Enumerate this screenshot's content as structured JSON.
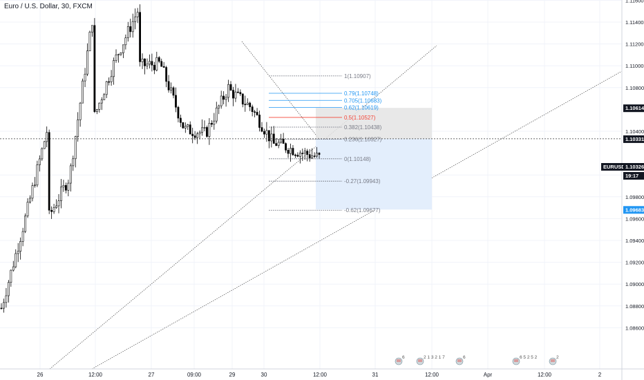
{
  "header": {
    "title": "Euro / U.S. Dollar, 30, FXCM"
  },
  "colors": {
    "candle": "#000000",
    "grid": "#f0f3fa",
    "trendline": "#4a4a4a",
    "fib_gray": "#787b86",
    "fib_blue": "#2196f3",
    "fib_red": "#f44336",
    "stop_zone": "#e4e4e4",
    "target_zone": "#e3eefc",
    "price_label_bg": "#131722",
    "target_label_bg": "#2196f3"
  },
  "price_axis": {
    "ticks": [
      "1.11800",
      "1.11600",
      "1.11400",
      "1.11200",
      "1.11000",
      "1.10800",
      "1.10400",
      "1.10000",
      "1.09800",
      "1.09600",
      "1.09400",
      "1.09200",
      "1.09000",
      "1.08800",
      "1.08600"
    ],
    "tick_values": [
      1.118,
      1.116,
      1.114,
      1.112,
      1.11,
      1.108,
      1.104,
      1.1,
      1.098,
      1.096,
      1.094,
      1.092,
      1.09,
      1.088,
      1.086
    ],
    "partial_tick": "1.10",
    "labels": {
      "upper_zone": "1.10614",
      "crosshair": "1.10331",
      "symbol": "EURUSD",
      "current_price": "1.10326",
      "countdown": "19:17",
      "target": "1.09683"
    }
  },
  "time_axis": {
    "ticks": [
      "26",
      "12:00",
      "27",
      "09:00",
      "29",
      "30",
      "12:00",
      "31",
      "12:00",
      "Apr",
      "12:00",
      "2"
    ]
  },
  "events": {
    "items": [
      {
        "icon": "event-flag-icon",
        "count": "6"
      },
      {
        "icon": "event-flag-icon",
        "count": "2 1 3 2 1 7"
      },
      {
        "icon": "event-flag-icon",
        "count": "6"
      },
      {
        "icon": "event-flag-icon",
        "count": "6 5 2 5 2"
      },
      {
        "icon": "event-flag-icon",
        "count": "2"
      }
    ]
  },
  "chart_data": {
    "type": "candlestick",
    "title": "Euro / U.S. Dollar, 30, FXCM",
    "ylim": [
      1.0845,
      1.1188
    ],
    "crosshair_price": 1.10331,
    "current_price": 1.10326,
    "fib_levels": [
      {
        "ratio": "1",
        "price": 1.10907,
        "label": "1(1.10907)",
        "tone": "gray"
      },
      {
        "ratio": "0.79",
        "price": 1.10748,
        "label": "0.79(1.10748)",
        "tone": "blue"
      },
      {
        "ratio": "0.705",
        "price": 1.10683,
        "label": "0.705(1.10683)",
        "tone": "blue"
      },
      {
        "ratio": "0.62",
        "price": 1.10619,
        "label": "0.62(1.10619)",
        "tone": "blue"
      },
      {
        "ratio": "0.5",
        "price": 1.10527,
        "label": "0.5(1.10527)",
        "tone": "red"
      },
      {
        "ratio": "0.382",
        "price": 1.10438,
        "label": "0.382(1.10438)",
        "tone": "gray"
      },
      {
        "ratio": "0.236",
        "price": 1.10327,
        "label": "0.236(1.10327)",
        "tone": "gray"
      },
      {
        "ratio": "0",
        "price": 1.10148,
        "label": "0(1.10148)",
        "tone": "gray"
      },
      {
        "ratio": "-0.27",
        "price": 1.09943,
        "label": "-0.27(1.09943)",
        "tone": "gray"
      },
      {
        "ratio": "-0.62",
        "price": 1.09677,
        "label": "-0.62(1.09677)",
        "tone": "gray"
      }
    ],
    "zones": {
      "stop": {
        "top": 1.10614,
        "bottom": 1.10331
      },
      "target": {
        "top": 1.10331,
        "bottom": 1.09683
      }
    },
    "trend_segments": [
      [
        1.0878,
        1.0956,
        1.104
      ],
      [
        1.0958,
        1.0998,
        1.1142
      ],
      [
        1.1048,
        1.1105,
        1.115
      ],
      [
        1.11,
        1.1102,
        1.1045
      ],
      [
        1.1042,
        1.1038,
        1.108
      ],
      [
        1.1078,
        1.1062,
        1.1028
      ],
      [
        1.103,
        1.1022,
        1.1016
      ]
    ]
  }
}
